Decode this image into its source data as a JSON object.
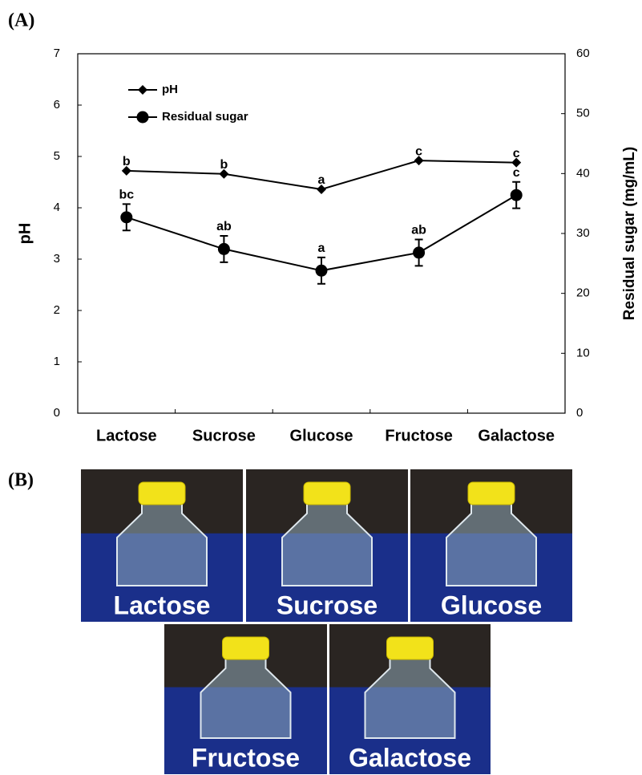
{
  "panel_labels": [
    "(A)",
    "(B)"
  ],
  "chart_data": {
    "type": "line",
    "categories": [
      "Lactose",
      "Sucrose",
      "Glucose",
      "Fructose",
      "Galactose"
    ],
    "ylabel": "pH",
    "y2label": "Residual sugar (mg/mL)",
    "ylim": [
      0,
      7
    ],
    "yticks": [
      0,
      1,
      2,
      3,
      4,
      5,
      6,
      7
    ],
    "y2lim": [
      0,
      60
    ],
    "y2ticks": [
      0,
      10,
      20,
      30,
      40,
      50,
      60
    ],
    "legend": "upper left",
    "series": [
      {
        "name": "pH",
        "color": "#000000",
        "marker": "diamond",
        "values": [
          4.72,
          4.66,
          4.36,
          4.92,
          4.88
        ],
        "labels": [
          "b",
          "b",
          "a",
          "c",
          "c"
        ]
      },
      {
        "name": "Residual sugar",
        "color": "#000000",
        "marker": "circle",
        "axis": "y2",
        "values": [
          32.7,
          27.4,
          23.8,
          26.8,
          36.4
        ],
        "errors": [
          2.2,
          2.2,
          2.2,
          2.2,
          2.2
        ],
        "labels": [
          "bc",
          "ab",
          "a",
          "ab",
          "c"
        ]
      }
    ]
  },
  "photos": [
    "Lactose",
    "Sucrose",
    "Glucose",
    "Fructose",
    "Galactose"
  ]
}
